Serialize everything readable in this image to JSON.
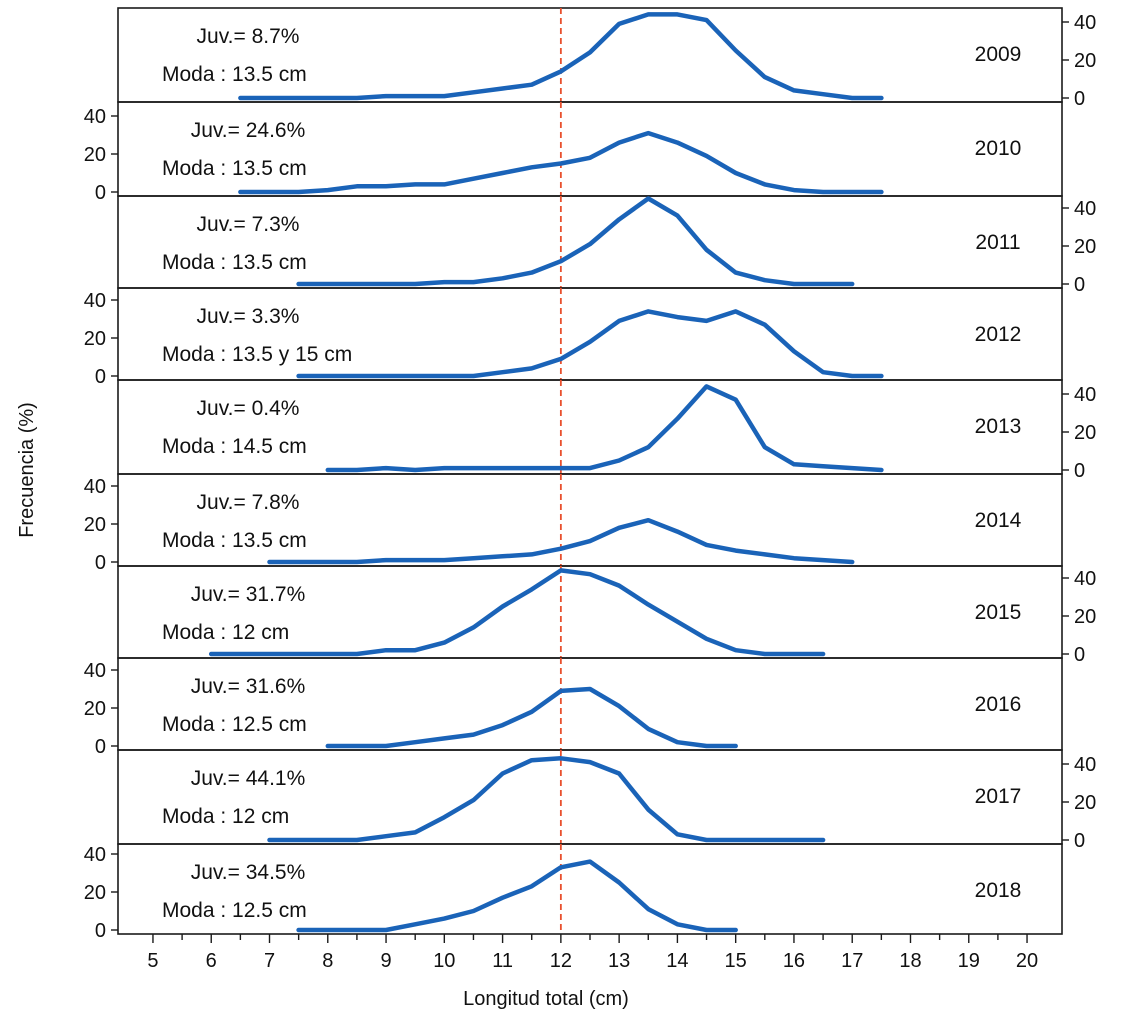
{
  "chart_data": {
    "type": "line",
    "xlabel": "Longitud total (cm)",
    "ylabel": "Frecuencia (%)",
    "xlim": [
      4.4,
      20.6
    ],
    "ylim": [
      0,
      40
    ],
    "x_ticks": [
      5,
      6,
      7,
      8,
      9,
      10,
      11,
      12,
      13,
      14,
      15,
      16,
      17,
      18,
      19,
      20
    ],
    "y_ticks": [
      0,
      20,
      40
    ],
    "reference_line_x": 12,
    "reference_line_color": "#e8502e",
    "line_color": "#1a63b8",
    "panels": [
      {
        "year": "2009",
        "juv": "Juv.= 8.7%",
        "moda": "Moda : 13.5 cm",
        "y_axis_side": "right",
        "x": [
          6.5,
          7,
          7.5,
          8,
          8.5,
          9,
          9.5,
          10,
          10.5,
          11,
          11.5,
          12,
          12.5,
          13,
          13.5,
          14,
          14.5,
          15,
          15.5,
          16,
          16.5,
          17,
          17.5
        ],
        "values": [
          0,
          0,
          0,
          0,
          0,
          1,
          1,
          1,
          3,
          5,
          7,
          14,
          24,
          39,
          44,
          44,
          41,
          25,
          11,
          4,
          2,
          0,
          0
        ]
      },
      {
        "year": "2010",
        "juv": "Juv.= 24.6%",
        "moda": "Moda : 13.5 cm",
        "y_axis_side": "left",
        "x": [
          6.5,
          7,
          7.5,
          8,
          8.5,
          9,
          9.5,
          10,
          10.5,
          11,
          11.5,
          12,
          12.5,
          13,
          13.5,
          14,
          14.5,
          15,
          15.5,
          16,
          16.5,
          17,
          17.5
        ],
        "values": [
          0,
          0,
          0,
          1,
          3,
          3,
          4,
          4,
          7,
          10,
          13,
          15,
          18,
          26,
          31,
          26,
          19,
          10,
          4,
          1,
          0,
          0,
          0
        ]
      },
      {
        "year": "2011",
        "juv": "Juv.= 7.3%",
        "moda": "Moda : 13.5 cm",
        "y_axis_side": "right",
        "x": [
          7.5,
          8,
          8.5,
          9,
          9.5,
          10,
          10.5,
          11,
          11.5,
          12,
          12.5,
          13,
          13.5,
          14,
          14.5,
          15,
          15.5,
          16,
          16.5,
          17
        ],
        "values": [
          0,
          0,
          0,
          0,
          0,
          1,
          1,
          3,
          6,
          12,
          21,
          34,
          45,
          36,
          18,
          6,
          2,
          0,
          0,
          0
        ]
      },
      {
        "year": "2012",
        "juv": "Juv.= 3.3%",
        "moda": "Moda : 13.5 y 15 cm",
        "y_axis_side": "left",
        "x": [
          7.5,
          8,
          8.5,
          9,
          9.5,
          10,
          10.5,
          11,
          11.5,
          12,
          12.5,
          13,
          13.5,
          14,
          14.5,
          15,
          15.5,
          16,
          16.5,
          17,
          17.5
        ],
        "values": [
          0,
          0,
          0,
          0,
          0,
          0,
          0,
          2,
          4,
          9,
          18,
          29,
          34,
          31,
          29,
          34,
          27,
          13,
          2,
          0,
          0
        ]
      },
      {
        "year": "2013",
        "juv": "Juv.= 0.4%",
        "moda": "Moda : 14.5 cm",
        "y_axis_side": "right",
        "x": [
          8,
          8.5,
          9,
          9.5,
          10,
          10.5,
          11,
          11.5,
          12,
          12.5,
          13,
          13.5,
          14,
          14.5,
          15,
          15.5,
          16,
          16.5,
          17,
          17.5
        ],
        "values": [
          0,
          0,
          1,
          0,
          1,
          1,
          1,
          1,
          1,
          1,
          5,
          12,
          27,
          44,
          37,
          12,
          3,
          2,
          1,
          0
        ]
      },
      {
        "year": "2014",
        "juv": "Juv.= 7.8%",
        "moda": "Moda : 13.5 cm",
        "y_axis_side": "left",
        "x": [
          7,
          7.5,
          8,
          8.5,
          9,
          9.5,
          10,
          10.5,
          11,
          11.5,
          12,
          12.5,
          13,
          13.5,
          14,
          14.5,
          15,
          15.5,
          16,
          16.5,
          17
        ],
        "values": [
          0,
          0,
          0,
          0,
          1,
          1,
          1,
          2,
          3,
          4,
          7,
          11,
          18,
          22,
          16,
          9,
          6,
          4,
          2,
          1,
          0
        ]
      },
      {
        "year": "2015",
        "juv": "Juv.= 31.7%",
        "moda": "Moda : 12 cm",
        "y_axis_side": "right",
        "x": [
          6,
          6.5,
          7,
          7.5,
          8,
          8.5,
          9,
          9.5,
          10,
          10.5,
          11,
          11.5,
          12,
          12.5,
          13,
          13.5,
          14,
          14.5,
          15,
          15.5,
          16,
          16.5
        ],
        "values": [
          0,
          0,
          0,
          0,
          0,
          0,
          2,
          2,
          6,
          14,
          25,
          34,
          44,
          42,
          36,
          26,
          17,
          8,
          2,
          0,
          0,
          0
        ]
      },
      {
        "year": "2016",
        "juv": "Juv.= 31.6%",
        "moda": "Moda : 12.5 cm",
        "y_axis_side": "left",
        "x": [
          8,
          8.5,
          9,
          9.5,
          10,
          10.5,
          11,
          11.5,
          12,
          12.5,
          13,
          13.5,
          14,
          14.5,
          15
        ],
        "values": [
          0,
          0,
          0,
          2,
          4,
          6,
          11,
          18,
          29,
          30,
          21,
          9,
          2,
          0,
          0
        ]
      },
      {
        "year": "2017",
        "juv": "Juv.= 44.1%",
        "moda": "Moda : 12 cm",
        "y_axis_side": "right",
        "x": [
          7,
          7.5,
          8,
          8.5,
          9,
          9.5,
          10,
          10.5,
          11,
          11.5,
          12,
          12.5,
          13,
          13.5,
          14,
          14.5,
          15,
          15.5,
          16,
          16.5
        ],
        "values": [
          0,
          0,
          0,
          0,
          2,
          4,
          12,
          21,
          35,
          42,
          43,
          41,
          35,
          16,
          3,
          0,
          0,
          0,
          0,
          0
        ]
      },
      {
        "year": "2018",
        "juv": "Juv.= 34.5%",
        "moda": "Moda : 12.5 cm",
        "y_axis_side": "left",
        "x": [
          7.5,
          8,
          8.5,
          9,
          9.5,
          10,
          10.5,
          11,
          11.5,
          12,
          12.5,
          13,
          13.5,
          14,
          14.5,
          15
        ],
        "values": [
          0,
          0,
          0,
          0,
          3,
          6,
          10,
          17,
          23,
          33,
          36,
          25,
          11,
          3,
          0,
          0
        ]
      }
    ]
  }
}
